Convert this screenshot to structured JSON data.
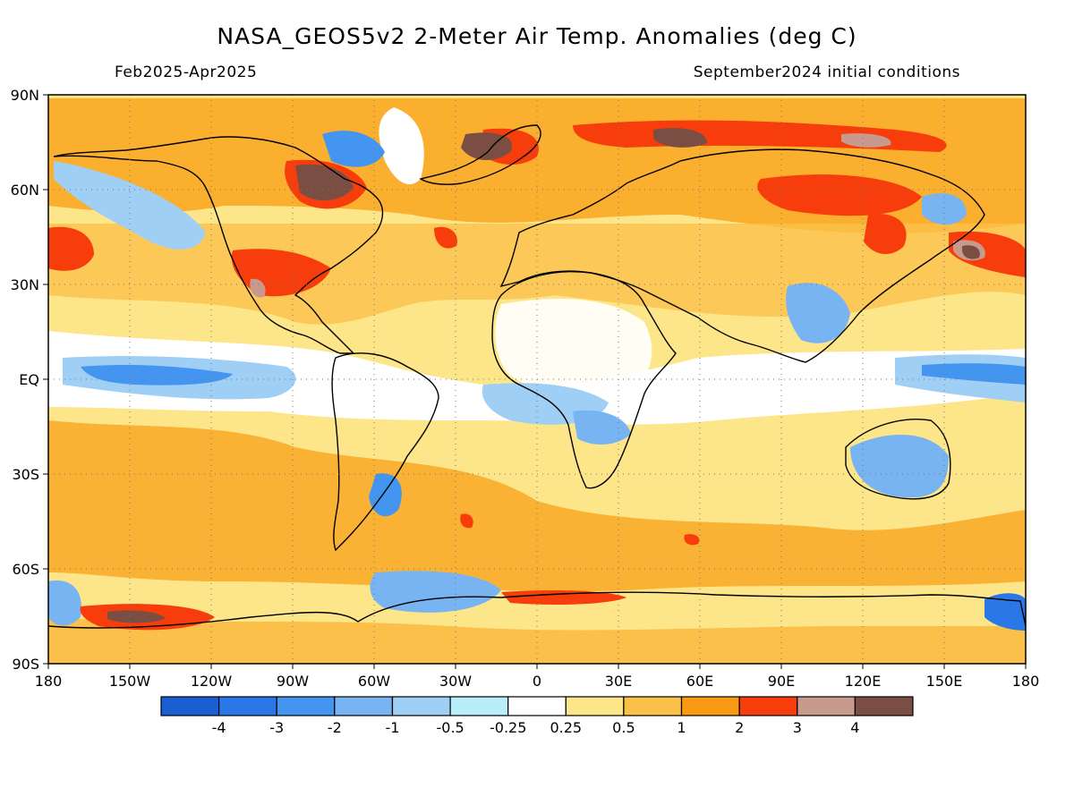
{
  "title": "NASA_GEOS5v2 2-Meter Air Temp. Anomalies (deg C)",
  "subtitle_left": "Feb2025-Apr2025",
  "subtitle_right": "September2024 initial conditions",
  "map": {
    "projection": "equirectangular",
    "lon_range": [
      -180,
      180
    ],
    "lat_range": [
      -90,
      90
    ],
    "lat_ticks": [
      "90N",
      "60N",
      "30N",
      "EQ",
      "30S",
      "60S",
      "90S"
    ],
    "lon_ticks": [
      "180",
      "150W",
      "120W",
      "90W",
      "60W",
      "30W",
      "0",
      "30E",
      "60E",
      "90E",
      "120E",
      "150E",
      "180"
    ],
    "gridlines": "dotted"
  },
  "colorbar": {
    "colors": [
      "#1a5fd1",
      "#2a78e8",
      "#4495f0",
      "#78b4f2",
      "#9fcff4",
      "#b8eefa",
      "#ffffff",
      "#fde68a",
      "#fbc04a",
      "#f99a14",
      "#f83d0c",
      "#c89a8d",
      "#7a4e42"
    ],
    "labels": [
      "-4",
      "-3",
      "-2",
      "-1",
      "-0.5",
      "-0.25",
      "0.25",
      "0.5",
      "1",
      "2",
      "3",
      "4"
    ]
  }
}
